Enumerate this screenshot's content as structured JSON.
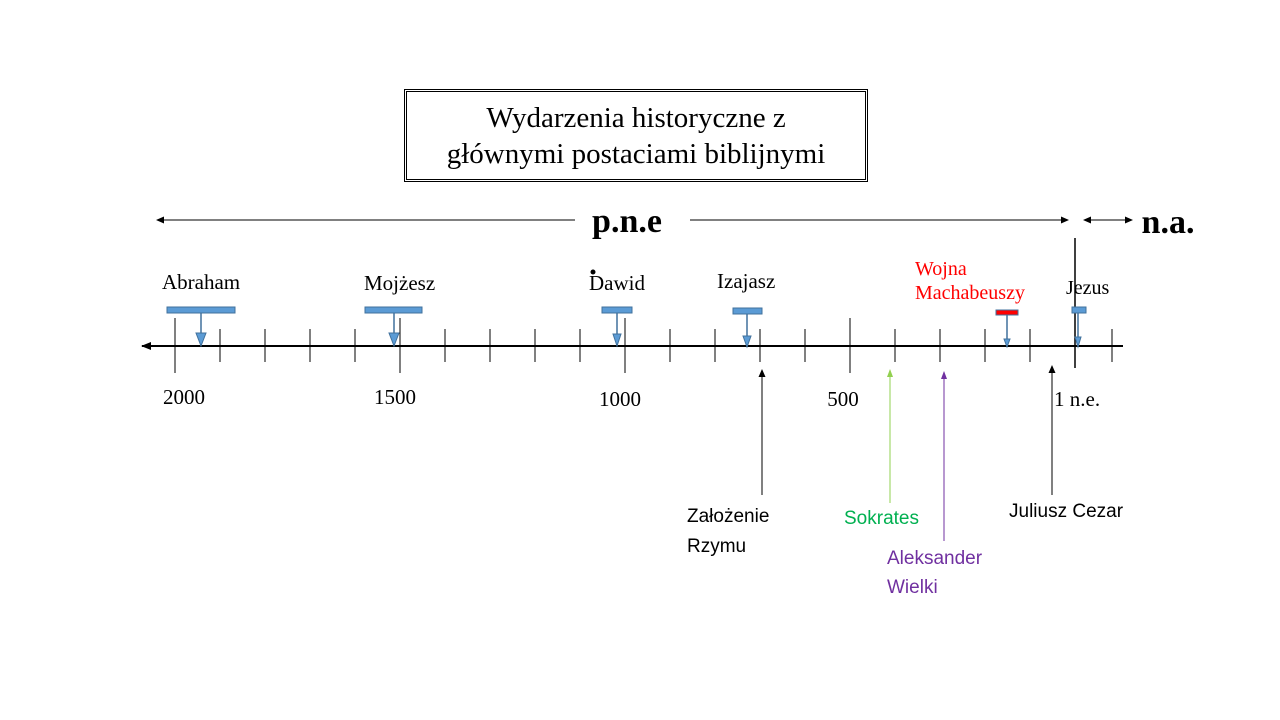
{
  "title": "Wydarzenia historyczne z\ngłównymi postaciami biblijnymi",
  "era_left": "p.n.e",
  "era_right": "n.a.",
  "scale_labels": [
    "2000",
    "1500",
    "1000",
    "500",
    "1 n.e."
  ],
  "figures": [
    {
      "label": "Abraham",
      "color": "#000000"
    },
    {
      "label": "Mojżesz",
      "color": "#000000"
    },
    {
      "label": "Dawid",
      "color": "#000000"
    },
    {
      "label": "Izajasz",
      "color": "#000000"
    },
    {
      "label": "Wojna\nMachabeuszy",
      "color": "#ff0000"
    },
    {
      "label": "Jezus",
      "color": "#000000"
    }
  ],
  "events": [
    {
      "label": "Założenie\nRzymu",
      "color": "#000000"
    },
    {
      "label": "Sokrates",
      "color": "#00b050"
    },
    {
      "label": "Aleksander\nWielki",
      "color": "#7030a0"
    },
    {
      "label": "Juliusz Cezar",
      "color": "#000000"
    }
  ],
  "colors": {
    "bar": "#5b9bd5",
    "bar_border": "#41719c",
    "maccabee_bar": "#ff0000",
    "sokrates_arrow": "#92d050",
    "aleksander_arrow": "#7030a0"
  }
}
